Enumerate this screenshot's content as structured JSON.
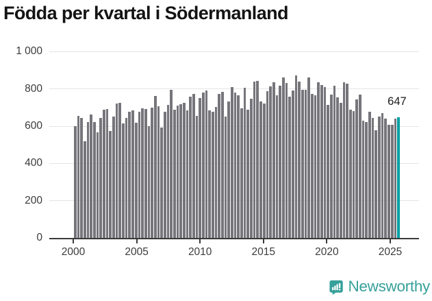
{
  "chart_data": {
    "type": "bar",
    "title": "Födda per kvartal i Södermanland",
    "x_start": {
      "year": 2000,
      "quarter": 1
    },
    "x_end": {
      "year": 2025,
      "quarter": 2
    },
    "values": [
      600,
      655,
      644,
      520,
      622,
      661,
      623,
      566,
      643,
      689,
      694,
      573,
      650,
      722,
      726,
      616,
      645,
      677,
      683,
      618,
      676,
      696,
      692,
      599,
      700,
      762,
      708,
      592,
      677,
      715,
      794,
      688,
      710,
      717,
      724,
      683,
      757,
      773,
      656,
      751,
      781,
      790,
      683,
      677,
      702,
      772,
      783,
      652,
      732,
      810,
      779,
      765,
      695,
      808,
      689,
      747,
      840,
      843,
      732,
      722,
      787,
      812,
      837,
      767,
      818,
      861,
      833,
      759,
      792,
      874,
      839,
      794,
      794,
      861,
      773,
      765,
      835,
      822,
      810,
      714,
      770,
      818,
      753,
      727,
      834,
      827,
      687,
      680,
      745,
      769,
      630,
      622,
      677,
      646,
      579,
      650,
      670,
      640,
      609,
      609,
      640,
      647
    ],
    "highlight": {
      "index": 101,
      "label": "647"
    },
    "ylim": [
      0,
      1000
    ],
    "y_ticks": [
      {
        "value": 0,
        "label": "0"
      },
      {
        "value": 200,
        "label": "200"
      },
      {
        "value": 400,
        "label": "400"
      },
      {
        "value": 600,
        "label": "600"
      },
      {
        "value": 800,
        "label": "800"
      },
      {
        "value": 1000,
        "label": "1 000"
      }
    ],
    "x_ticks": [
      {
        "year": 2000,
        "label": "2000"
      },
      {
        "year": 2005,
        "label": "2005"
      },
      {
        "year": 2010,
        "label": "2010"
      },
      {
        "year": 2015,
        "label": "2015"
      },
      {
        "year": 2020,
        "label": "2020"
      },
      {
        "year": 2025,
        "label": "2025"
      }
    ],
    "grid": "horizontal",
    "legend": "none",
    "colors": {
      "bar": "#75757b",
      "highlight": "#00a0a3",
      "axis": "#3a3a3a",
      "gridline": "#e4e4e4",
      "tick_text": "#3b3b3b",
      "title_text": "#141414"
    }
  },
  "annotation": {
    "last_value_label": "647"
  },
  "footer": {
    "brand": "Newsworthy",
    "brand_color": "#37a09a",
    "logo_icon": "newsworthy-speech-bubble-chart-icon"
  }
}
